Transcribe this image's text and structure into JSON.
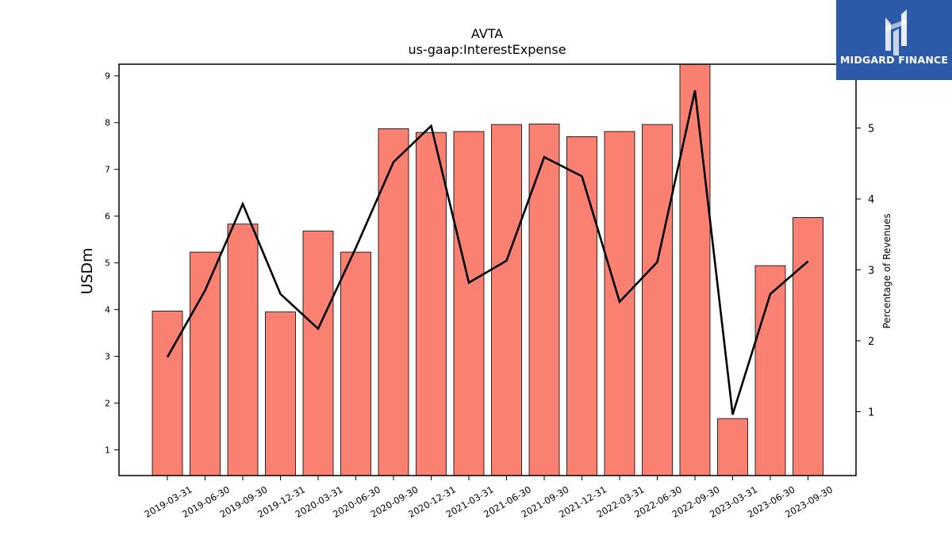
{
  "chart_data": {
    "type": "bar",
    "title": "AVTA",
    "subtitle": "us-gaap:InterestExpense",
    "ylabel": "USDm",
    "y2label": "Percentage of Revenues",
    "categories": [
      "2019-03-31",
      "2019-06-30",
      "2019-09-30",
      "2019-12-31",
      "2020-03-31",
      "2020-06-30",
      "2020-09-30",
      "2020-12-31",
      "2021-03-31",
      "2021-06-30",
      "2021-09-30",
      "2021-12-31",
      "2022-03-31",
      "2022-06-30",
      "2022-09-30",
      "2023-03-31",
      "2023-06-30",
      "2023-09-30"
    ],
    "series": [
      {
        "kind": "bar",
        "axis": "left",
        "values": [
          3.97,
          5.23,
          5.83,
          3.95,
          5.68,
          5.23,
          7.87,
          7.79,
          7.81,
          7.96,
          7.97,
          7.7,
          7.81,
          7.96,
          9.3,
          1.67,
          4.94,
          5.97
        ]
      },
      {
        "kind": "line",
        "axis": "right",
        "values": [
          1.77,
          2.71,
          3.93,
          2.66,
          2.17,
          3.31,
          4.52,
          5.03,
          2.82,
          3.13,
          4.59,
          4.32,
          2.55,
          3.11,
          5.53,
          0.96,
          2.66,
          3.12
        ]
      }
    ],
    "ylim": [
      0.45,
      9.25
    ],
    "yticks": [
      1,
      2,
      3,
      4,
      5,
      6,
      7,
      8,
      9
    ],
    "y2lim": [
      0.1,
      5.9
    ],
    "y2ticks": [
      1,
      2,
      3,
      4,
      5
    ],
    "grid": false,
    "colors": {
      "bar": "#fa8072",
      "bar_edge": "#000000",
      "line": "#000000"
    }
  },
  "logo": {
    "text": "MIDGARD FINANCE",
    "color": "#2d5aa8"
  }
}
